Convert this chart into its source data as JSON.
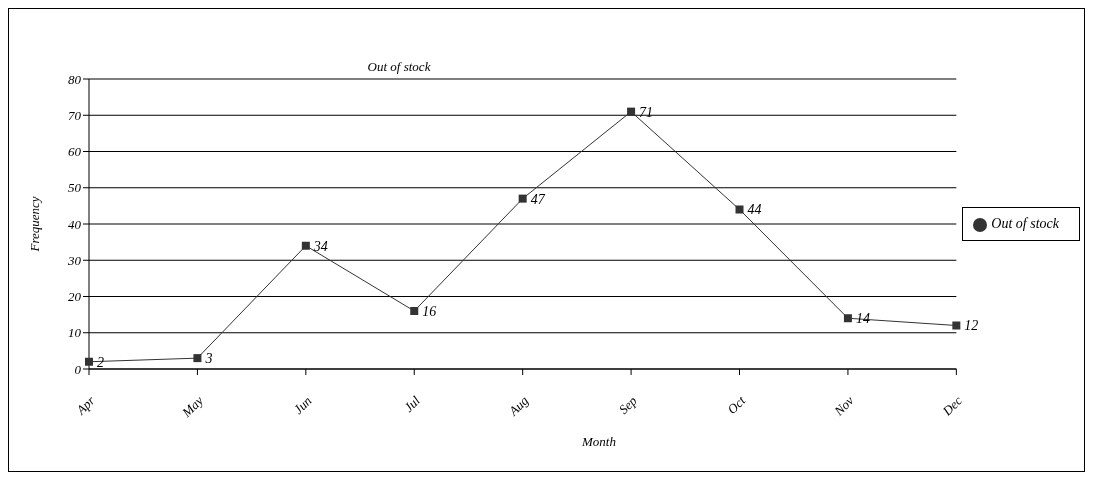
{
  "chart_data": {
    "type": "line",
    "title": "Out of stock",
    "xlabel": "Month",
    "ylabel": "Frequency",
    "categories": [
      "Apr",
      "May",
      "Jun",
      "Jul",
      "Aug",
      "Sep",
      "Oct",
      "Nov",
      "Dec"
    ],
    "series": [
      {
        "name": "Out of stock",
        "color": "#333333",
        "values": [
          2,
          3,
          34,
          16,
          47,
          71,
          44,
          14,
          12
        ]
      }
    ],
    "ylim": [
      0,
      80
    ],
    "yticks": [
      0,
      10,
      20,
      30,
      40,
      50,
      60,
      70,
      80
    ],
    "grid": "y",
    "legend": "right",
    "marker": "square",
    "line_style": "solid",
    "data_labels": true
  }
}
